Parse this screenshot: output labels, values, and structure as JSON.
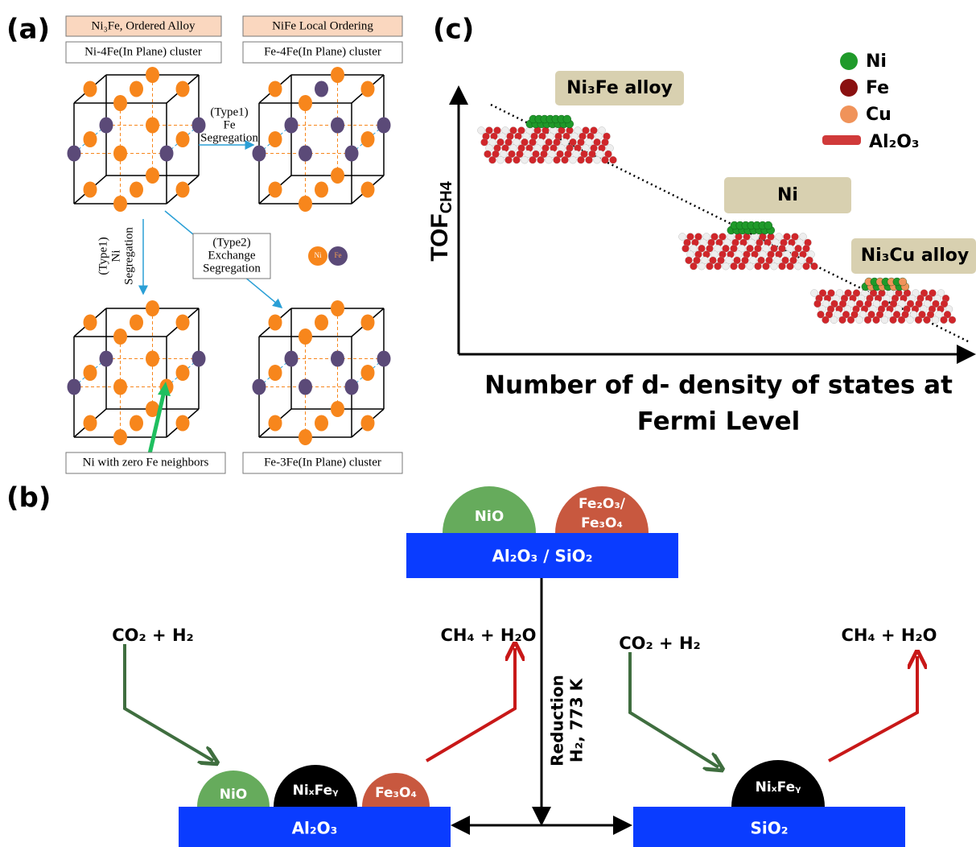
{
  "panel_a": {
    "label": "(a)",
    "top_left_title": "Ni₃Fe, Ordered Alloy",
    "top_left_caption": "Ni-4Fe(In Plane) cluster",
    "top_right_title": "NiFe Local Ordering",
    "top_right_caption": "Fe-4Fe(In Plane) cluster",
    "arrow_right": [
      "(Type1)",
      "Fe",
      "Segregation"
    ],
    "arrow_down": [
      "(Type1)",
      "Ni",
      "Segregation"
    ],
    "arrow_diag": [
      "(Type2)",
      "Exchange",
      "Segregation"
    ],
    "legend": [
      "Ni",
      "Fe"
    ],
    "bottom_left_caption": "Ni with zero Fe neighbors",
    "bottom_right_caption": "Fe-3Fe(In Plane) cluster"
  },
  "panel_c": {
    "label": "(c)",
    "y_axis_label": {
      "main": "TOF",
      "sub": "CH4"
    },
    "x_axis_label": [
      "Number of d- density of states at",
      "Fermi Level"
    ],
    "points": [
      "Ni₃Fe alloy",
      "Ni",
      "Ni₃Cu alloy"
    ],
    "legend": [
      "Ni",
      "Fe",
      "Cu",
      "Al₂O₃"
    ]
  },
  "panel_b": {
    "label": "(b)",
    "top_support": "Al₂O₃ / SiO₂",
    "top_particles": [
      "NiO",
      "Fe₂O₃/",
      "Fe₃O₄"
    ],
    "reduction": [
      "Reduction",
      "H₂, 773 K"
    ],
    "left": {
      "reactant": "CO₂ + H₂",
      "product": "CH₄ + H₂O",
      "support": "Al₂O₃",
      "particles": [
        "NiO",
        "NiₓFeᵧ",
        "Fe₃O₄"
      ]
    },
    "right": {
      "reactant": "CO₂ + H₂",
      "product": "CH₄ + H₂O",
      "support": "SiO₂",
      "particle": "NiₓFeᵧ"
    }
  }
}
